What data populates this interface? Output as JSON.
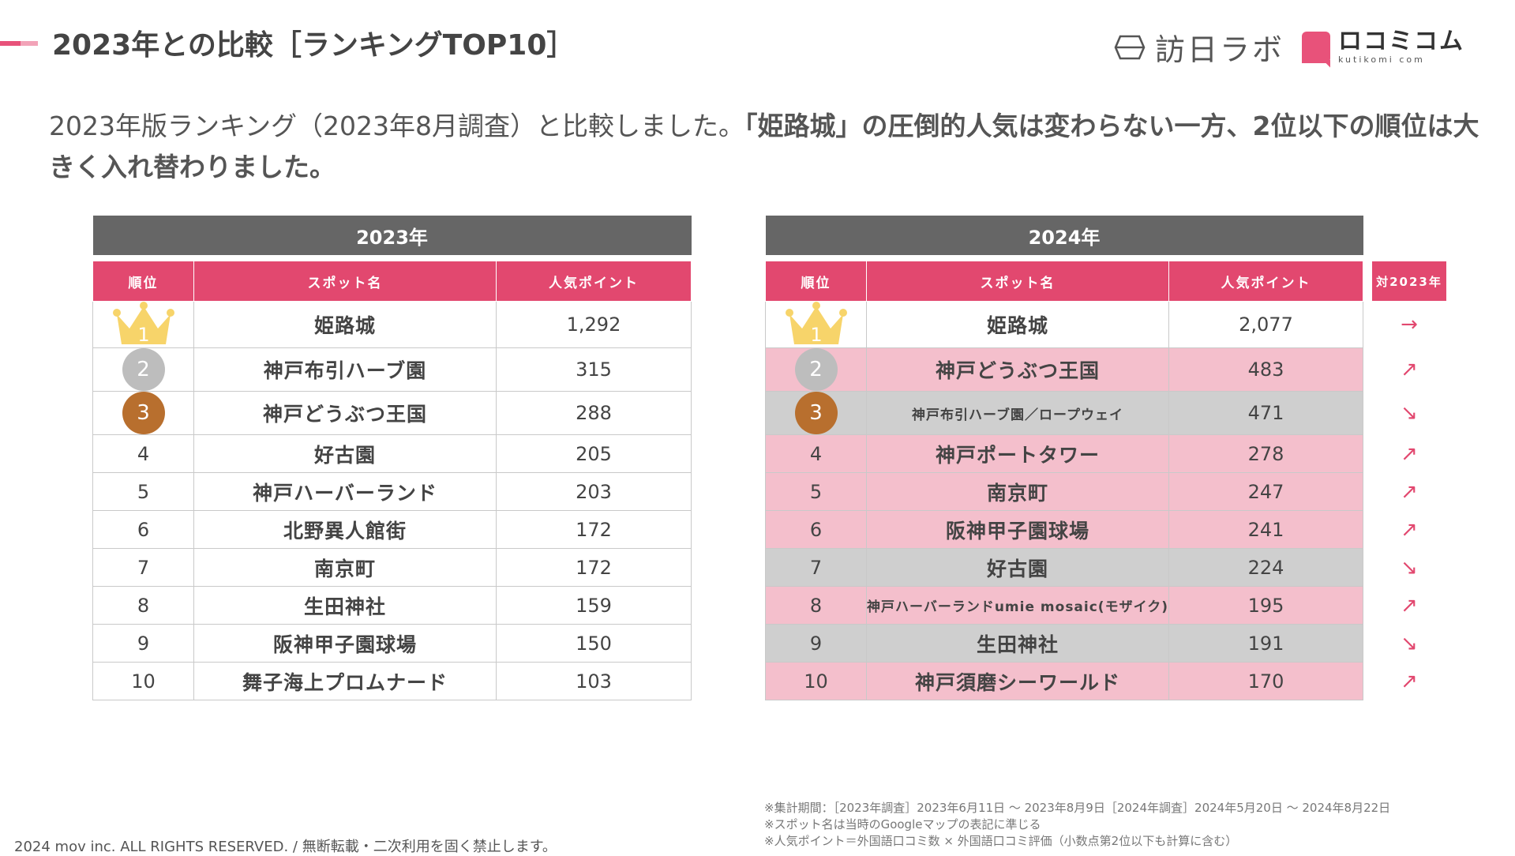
{
  "header": {
    "title": "2023年との比較［ランキングTOP10］",
    "logo_hoshi": "訪日ラボ",
    "logo_kuti_main": "ロコミコム",
    "logo_kuti_sub": "kutikomi com",
    "accent_color": "#e8527a"
  },
  "lead": {
    "part1": "2023年版ランキング（2023年8月調査）と比較しました。",
    "part2": "「姫路城」の圧倒的人気は変わらない一方、2位以下の順位は大きく入れ替わりました。"
  },
  "table_2023": {
    "year": "2023年",
    "headers": [
      "順位",
      "スポット名",
      "人気ポイント"
    ],
    "rows": [
      {
        "rank": "1",
        "name": "姫路城",
        "points": "1,292"
      },
      {
        "rank": "2",
        "name": "神戸布引ハーブ園",
        "points": "315"
      },
      {
        "rank": "3",
        "name": "神戸どうぶつ王国",
        "points": "288"
      },
      {
        "rank": "4",
        "name": "好古園",
        "points": "205"
      },
      {
        "rank": "5",
        "name": "神戸ハーバーランド",
        "points": "203"
      },
      {
        "rank": "6",
        "name": "北野異人館街",
        "points": "172"
      },
      {
        "rank": "7",
        "name": "南京町",
        "points": "172"
      },
      {
        "rank": "8",
        "name": "生田神社",
        "points": "159"
      },
      {
        "rank": "9",
        "name": "阪神甲子園球場",
        "points": "150"
      },
      {
        "rank": "10",
        "name": "舞子海上プロムナード",
        "points": "103"
      }
    ]
  },
  "table_2024": {
    "year": "2024年",
    "headers": [
      "順位",
      "スポット名",
      "人気ポイント"
    ],
    "compare_header": "対2023年",
    "rows": [
      {
        "rank": "1",
        "name": "姫路城",
        "points": "2,077",
        "trend": "→"
      },
      {
        "rank": "2",
        "name": "神戸どうぶつ王国",
        "points": "483",
        "trend": "↗"
      },
      {
        "rank": "3",
        "name": "神戸布引ハーブ園／ロープウェイ",
        "points": "471",
        "trend": "↘"
      },
      {
        "rank": "4",
        "name": "神戸ポートタワー",
        "points": "278",
        "trend": "↗"
      },
      {
        "rank": "5",
        "name": "南京町",
        "points": "247",
        "trend": "↗"
      },
      {
        "rank": "6",
        "name": "阪神甲子園球場",
        "points": "241",
        "trend": "↗"
      },
      {
        "rank": "7",
        "name": "好古園",
        "points": "224",
        "trend": "↘"
      },
      {
        "rank": "8",
        "name": "神戸ハーバーランドumie mosaic(モザイク)",
        "points": "195",
        "trend": "↗"
      },
      {
        "rank": "9",
        "name": "生田神社",
        "points": "191",
        "trend": "↘"
      },
      {
        "rank": "10",
        "name": "神戸須磨シーワールド",
        "points": "170",
        "trend": "↗"
      }
    ]
  },
  "notes": [
    "※集計期間：［2023年調査］2023年6月11日 〜 2023年8月9日［2024年調査］2024年5月20日 〜 2024年8月22日",
    "※スポット名は当時のGoogleマップの表記に準じる",
    "※人気ポイント＝外国語口コミ数 × 外国語口コミ評価（小数点第2位以下も計算に含む）"
  ],
  "footer": "2024 mov inc. ALL RIGHTS RESERVED. / 無断転載・二次利用を固く禁止します。",
  "colors": {
    "header_pink": "#e2486f",
    "up_row": "#f4bfcc",
    "down_row": "#cfcfcf",
    "year_bar": "#666666",
    "silver": "#bdbdbd",
    "bronze": "#b86f2e",
    "gold": "#f7d46a"
  }
}
